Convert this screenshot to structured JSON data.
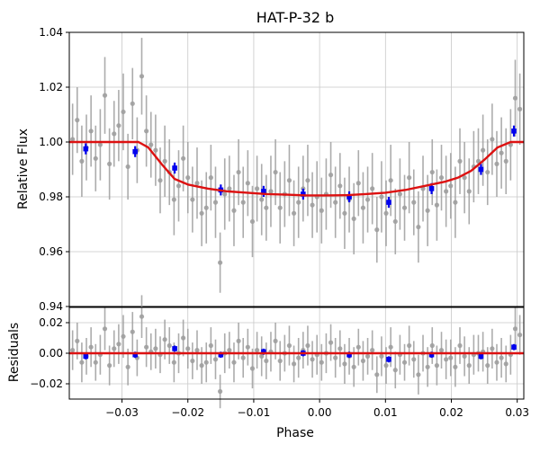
{
  "chart_data": [
    {
      "id": "lightcurve",
      "type": "scatter",
      "title": "HAT-P-32 b",
      "ylabel": "Relative Flux",
      "xlabel": "",
      "xlim": [
        -0.038,
        0.031
      ],
      "ylim": [
        0.94,
        1.04
      ],
      "yticks": [
        0.94,
        0.96,
        0.98,
        1.0,
        1.02,
        1.04
      ],
      "ytick_labels": [
        "0.94",
        "0.96",
        "0.98",
        "1.00",
        "1.02",
        "1.04"
      ],
      "grid": true,
      "colors": {
        "raw": "#9e9e9e",
        "binned": "#0000ee",
        "model": "#dd1111"
      },
      "series": [
        {
          "kind": "raw",
          "x": [
            -0.0375,
            -0.0368,
            -0.0361,
            -0.0354,
            -0.0347,
            -0.034,
            -0.0333,
            -0.0326,
            -0.0319,
            -0.0312,
            -0.0305,
            -0.0298,
            -0.0291,
            -0.0284,
            -0.0277,
            -0.027,
            -0.0263,
            -0.0256,
            -0.0249,
            -0.0242,
            -0.0235,
            -0.0228,
            -0.0221,
            -0.0214,
            -0.0207,
            -0.02,
            -0.0193,
            -0.0186,
            -0.0179,
            -0.0172,
            -0.0165,
            -0.0158,
            -0.0151,
            -0.0144,
            -0.0137,
            -0.013,
            -0.0123,
            -0.0116,
            -0.0109,
            -0.0102,
            -0.0095,
            -0.0088,
            -0.0081,
            -0.0074,
            -0.0067,
            -0.006,
            -0.0053,
            -0.0046,
            -0.0039,
            -0.0032,
            -0.0025,
            -0.0018,
            -0.0011,
            -0.0004,
            0.0003,
            0.001,
            0.0017,
            0.0024,
            0.0031,
            0.0038,
            0.0045,
            0.0052,
            0.0059,
            0.0066,
            0.0073,
            0.008,
            0.0087,
            0.0094,
            0.0101,
            0.0108,
            0.0115,
            0.0122,
            0.0129,
            0.0136,
            0.0143,
            0.015,
            0.0157,
            0.0164,
            0.0171,
            0.0178,
            0.0185,
            0.0192,
            0.0199,
            0.0206,
            0.0213,
            0.022,
            0.0227,
            0.0234,
            0.0241,
            0.0248,
            0.0255,
            0.0262,
            0.0269,
            0.0276,
            0.0283,
            0.029,
            0.0297,
            0.0304
          ],
          "y": [
            1.001,
            1.008,
            0.993,
            0.998,
            1.004,
            0.994,
            0.999,
            1.017,
            0.992,
            1.003,
            1.006,
            1.011,
            0.991,
            1.014,
            0.997,
            1.024,
            1.004,
            0.999,
            0.997,
            0.986,
            0.993,
            0.989,
            0.979,
            0.984,
            0.994,
            0.987,
            0.979,
            0.985,
            0.974,
            0.976,
            0.987,
            0.978,
            0.956,
            0.981,
            0.983,
            0.975,
            0.989,
            0.978,
            0.985,
            0.971,
            0.983,
            0.979,
            0.976,
            0.982,
            0.989,
            0.976,
            0.981,
            0.986,
            0.974,
            0.978,
            0.983,
            0.986,
            0.977,
            0.98,
            0.975,
            0.981,
            0.988,
            0.978,
            0.984,
            0.974,
            0.979,
            0.972,
            0.985,
            0.976,
            0.979,
            0.983,
            0.968,
            0.98,
            0.974,
            0.986,
            0.971,
            0.981,
            0.976,
            0.987,
            0.978,
            0.969,
            0.983,
            0.975,
            0.989,
            0.977,
            0.987,
            0.982,
            0.984,
            0.978,
            0.993,
            0.987,
            0.982,
            0.991,
            0.993,
            0.997,
            0.989,
            1.001,
            0.992,
            0.996,
            0.993,
            0.999,
            1.016,
            1.012
          ],
          "err": [
            0.013,
            0.012,
            0.013,
            0.012,
            0.013,
            0.012,
            0.013,
            0.014,
            0.013,
            0.012,
            0.013,
            0.014,
            0.012,
            0.013,
            0.012,
            0.014,
            0.013,
            0.012,
            0.013,
            0.012,
            0.013,
            0.012,
            0.013,
            0.013,
            0.012,
            0.013,
            0.012,
            0.013,
            0.012,
            0.013,
            0.012,
            0.013,
            0.011,
            0.013,
            0.012,
            0.013,
            0.012,
            0.013,
            0.012,
            0.013,
            0.012,
            0.013,
            0.012,
            0.013,
            0.012,
            0.013,
            0.012,
            0.013,
            0.012,
            0.013,
            0.012,
            0.013,
            0.012,
            0.013,
            0.012,
            0.013,
            0.012,
            0.013,
            0.012,
            0.013,
            0.012,
            0.013,
            0.012,
            0.013,
            0.012,
            0.013,
            0.012,
            0.013,
            0.012,
            0.013,
            0.012,
            0.013,
            0.012,
            0.013,
            0.012,
            0.013,
            0.012,
            0.013,
            0.012,
            0.013,
            0.012,
            0.013,
            0.012,
            0.013,
            0.012,
            0.013,
            0.012,
            0.013,
            0.012,
            0.013,
            0.012,
            0.013,
            0.012,
            0.013,
            0.012,
            0.013,
            0.014,
            0.013
          ]
        },
        {
          "kind": "binned",
          "x": [
            -0.0355,
            -0.028,
            -0.022,
            -0.015,
            -0.0085,
            -0.0025,
            0.0045,
            0.0105,
            0.017,
            0.0245,
            0.0295
          ],
          "y": [
            0.9975,
            0.9965,
            0.9905,
            0.9825,
            0.982,
            0.981,
            0.98,
            0.978,
            0.983,
            0.99,
            1.004
          ],
          "err": [
            0.002,
            0.002,
            0.002,
            0.002,
            0.002,
            0.002,
            0.002,
            0.002,
            0.002,
            0.002,
            0.002
          ]
        },
        {
          "kind": "model",
          "x": [
            -0.038,
            -0.0275,
            -0.026,
            -0.024,
            -0.022,
            -0.02,
            -0.017,
            -0.014,
            -0.011,
            -0.008,
            -0.005,
            -0.002,
            0.001,
            0.004,
            0.007,
            0.01,
            0.013,
            0.016,
            0.019,
            0.021,
            0.023,
            0.025,
            0.027,
            0.029,
            0.031
          ],
          "y": [
            1.0,
            1.0,
            0.998,
            0.992,
            0.9865,
            0.9845,
            0.983,
            0.982,
            0.9815,
            0.981,
            0.9808,
            0.9805,
            0.9805,
            0.9806,
            0.981,
            0.9815,
            0.9825,
            0.984,
            0.9855,
            0.987,
            0.9895,
            0.9935,
            0.998,
            1.0,
            1.0
          ]
        }
      ]
    },
    {
      "id": "residuals",
      "type": "scatter",
      "ylabel": "Residuals",
      "xlabel": "Phase",
      "xlim": [
        -0.038,
        0.031
      ],
      "ylim": [
        -0.03,
        0.03
      ],
      "yticks": [
        -0.02,
        0.0,
        0.02
      ],
      "ytick_labels": [
        "−0.02",
        "0.00",
        "0.02"
      ],
      "xticks": [
        -0.03,
        -0.02,
        -0.01,
        0.0,
        0.01,
        0.02,
        0.03
      ],
      "xtick_labels": [
        "−0.03",
        "−0.02",
        "−0.01",
        "0.00",
        "0.01",
        "0.02",
        "0.03"
      ],
      "grid": true,
      "colors": {
        "raw": "#9e9e9e",
        "binned": "#0000ee",
        "model": "#dd1111"
      },
      "series": [
        {
          "kind": "raw",
          "x": [
            -0.0375,
            -0.0368,
            -0.0361,
            -0.0354,
            -0.0347,
            -0.034,
            -0.0333,
            -0.0326,
            -0.0319,
            -0.0312,
            -0.0305,
            -0.0298,
            -0.0291,
            -0.0284,
            -0.0277,
            -0.027,
            -0.0263,
            -0.0256,
            -0.0249,
            -0.0242,
            -0.0235,
            -0.0228,
            -0.0221,
            -0.0214,
            -0.0207,
            -0.02,
            -0.0193,
            -0.0186,
            -0.0179,
            -0.0172,
            -0.0165,
            -0.0158,
            -0.0151,
            -0.0144,
            -0.0137,
            -0.013,
            -0.0123,
            -0.0116,
            -0.0109,
            -0.0102,
            -0.0095,
            -0.0088,
            -0.0081,
            -0.0074,
            -0.0067,
            -0.006,
            -0.0053,
            -0.0046,
            -0.0039,
            -0.0032,
            -0.0025,
            -0.0018,
            -0.0011,
            -0.0004,
            0.0003,
            0.001,
            0.0017,
            0.0024,
            0.0031,
            0.0038,
            0.0045,
            0.0052,
            0.0059,
            0.0066,
            0.0073,
            0.008,
            0.0087,
            0.0094,
            0.0101,
            0.0108,
            0.0115,
            0.0122,
            0.0129,
            0.0136,
            0.0143,
            0.015,
            0.0157,
            0.0164,
            0.0171,
            0.0178,
            0.0185,
            0.0192,
            0.0199,
            0.0206,
            0.0213,
            0.022,
            0.0227,
            0.0234,
            0.0241,
            0.0248,
            0.0255,
            0.0262,
            0.0269,
            0.0276,
            0.0283,
            0.029,
            0.0297,
            0.0304
          ],
          "y": [
            0.002,
            0.008,
            -0.006,
            -0.002,
            0.004,
            -0.006,
            -0.001,
            0.016,
            -0.008,
            0.003,
            0.006,
            0.011,
            -0.009,
            0.014,
            -0.003,
            0.024,
            0.004,
            0.001,
            0.003,
            -0.001,
            0.009,
            0.005,
            -0.006,
            0.0,
            0.01,
            0.003,
            -0.005,
            0.002,
            -0.008,
            -0.006,
            0.005,
            -0.004,
            -0.025,
            0.0,
            0.002,
            -0.006,
            0.008,
            -0.003,
            0.004,
            -0.01,
            0.002,
            -0.002,
            -0.005,
            0.001,
            0.008,
            -0.005,
            0.0,
            0.005,
            -0.007,
            -0.003,
            0.002,
            0.005,
            -0.004,
            -0.001,
            -0.006,
            0.0,
            0.007,
            -0.003,
            0.003,
            -0.007,
            -0.002,
            -0.009,
            0.004,
            -0.005,
            -0.002,
            0.002,
            -0.014,
            -0.002,
            -0.008,
            0.004,
            -0.011,
            -0.001,
            -0.006,
            0.005,
            -0.004,
            -0.014,
            0.0,
            -0.009,
            0.005,
            -0.008,
            0.002,
            -0.004,
            -0.003,
            -0.009,
            0.005,
            -0.002,
            -0.008,
            -0.001,
            0.0,
            0.001,
            -0.008,
            0.003,
            -0.006,
            -0.003,
            -0.007,
            -0.001,
            0.016,
            0.012
          ],
          "err": [
            0.013,
            0.012,
            0.013,
            0.012,
            0.013,
            0.012,
            0.013,
            0.014,
            0.013,
            0.012,
            0.013,
            0.014,
            0.012,
            0.013,
            0.012,
            0.014,
            0.013,
            0.012,
            0.013,
            0.012,
            0.013,
            0.012,
            0.013,
            0.013,
            0.012,
            0.013,
            0.012,
            0.013,
            0.012,
            0.013,
            0.012,
            0.013,
            0.011,
            0.013,
            0.012,
            0.013,
            0.012,
            0.013,
            0.012,
            0.013,
            0.012,
            0.013,
            0.012,
            0.013,
            0.012,
            0.013,
            0.012,
            0.013,
            0.012,
            0.013,
            0.012,
            0.013,
            0.012,
            0.013,
            0.012,
            0.013,
            0.012,
            0.013,
            0.012,
            0.013,
            0.012,
            0.013,
            0.012,
            0.013,
            0.012,
            0.013,
            0.012,
            0.013,
            0.012,
            0.013,
            0.012,
            0.013,
            0.012,
            0.013,
            0.012,
            0.013,
            0.012,
            0.013,
            0.012,
            0.013,
            0.012,
            0.013,
            0.012,
            0.013,
            0.012,
            0.013,
            0.012,
            0.013,
            0.012,
            0.013,
            0.012,
            0.013,
            0.012,
            0.013,
            0.012,
            0.013,
            0.014,
            0.013
          ]
        },
        {
          "kind": "binned",
          "x": [
            -0.0355,
            -0.028,
            -0.022,
            -0.015,
            -0.0085,
            -0.0025,
            0.0045,
            0.0105,
            0.017,
            0.0245,
            0.0295
          ],
          "y": [
            -0.002,
            -0.001,
            0.003,
            -0.001,
            0.001,
            0.0,
            -0.001,
            -0.004,
            -0.001,
            -0.002,
            0.004
          ],
          "err": [
            0.002,
            0.002,
            0.002,
            0.002,
            0.002,
            0.002,
            0.002,
            0.002,
            0.002,
            0.002,
            0.002
          ]
        },
        {
          "kind": "model",
          "x": [
            -0.038,
            0.031
          ],
          "y": [
            0.0,
            0.0
          ]
        }
      ]
    }
  ]
}
